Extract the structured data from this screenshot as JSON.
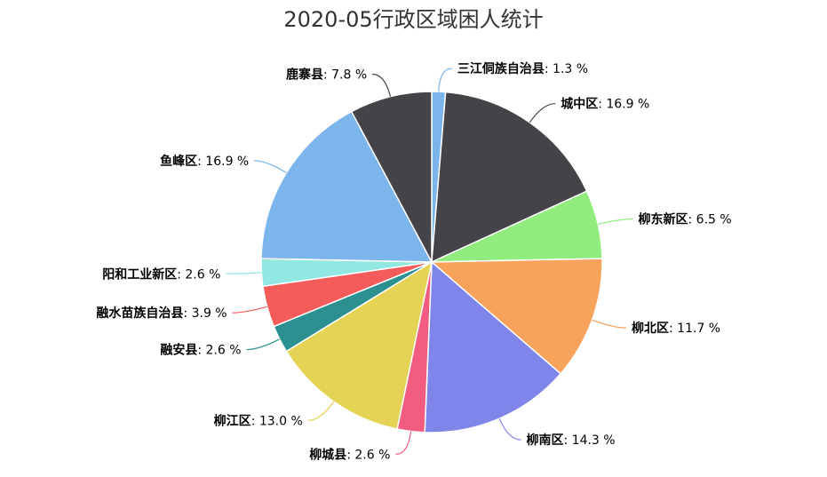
{
  "chart_data": {
    "type": "pie",
    "title": "2020-05行政区域困人统计",
    "unit": "%",
    "slices": [
      {
        "name": "三江侗族自治县",
        "value": 1.3,
        "color": "#7cb5ec"
      },
      {
        "name": "城中区",
        "value": 16.9,
        "color": "#434348"
      },
      {
        "name": "柳东新区",
        "value": 6.5,
        "color": "#90ed7d"
      },
      {
        "name": "柳北区",
        "value": 11.7,
        "color": "#f7a35c"
      },
      {
        "name": "柳南区",
        "value": 14.3,
        "color": "#8085e9"
      },
      {
        "name": "柳城县",
        "value": 2.6,
        "color": "#f15c80"
      },
      {
        "name": "柳江区",
        "value": 13.0,
        "color": "#e4d354"
      },
      {
        "name": "融安县",
        "value": 2.6,
        "color": "#2b908f"
      },
      {
        "name": "融水苗族自治县",
        "value": 3.9,
        "color": "#f45b5b"
      },
      {
        "name": "阳和工业新区",
        "value": 2.6,
        "color": "#91e8e1"
      },
      {
        "name": "鱼峰区",
        "value": 16.9,
        "color": "#7cb5ec"
      },
      {
        "name": "鹿寨县",
        "value": 7.8,
        "color": "#434348"
      }
    ]
  }
}
